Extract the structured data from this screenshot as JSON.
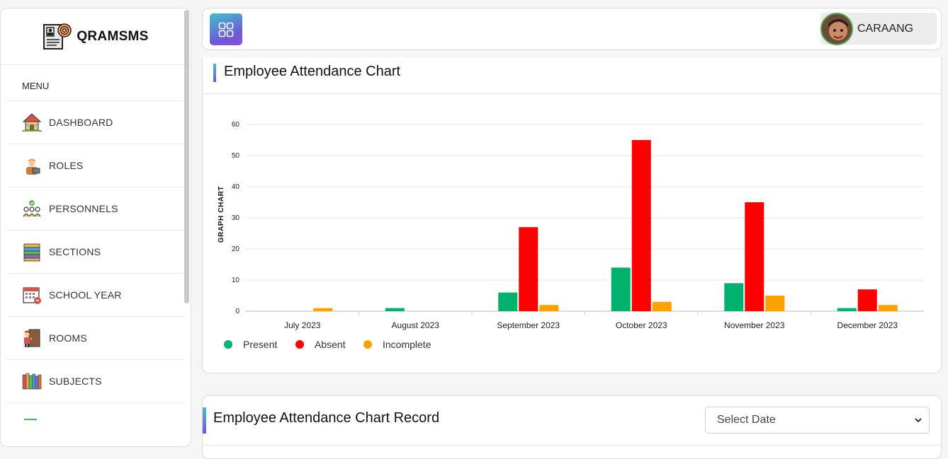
{
  "brand": {
    "name": "QRAMSMS"
  },
  "sidebar": {
    "menu_label": "MENU",
    "items": [
      {
        "label": "DASHBOARD",
        "icon": "house-icon"
      },
      {
        "label": "ROLES",
        "icon": "worker-icon"
      },
      {
        "label": "PERSONNELS",
        "icon": "group-icon"
      },
      {
        "label": "SECTIONS",
        "icon": "books-stack-icon"
      },
      {
        "label": "SCHOOL YEAR",
        "icon": "calendar-icon"
      },
      {
        "label": "ROOMS",
        "icon": "door-icon"
      },
      {
        "label": "SUBJECTS",
        "icon": "bookshelf-icon"
      }
    ]
  },
  "topbar": {
    "user_name": "CARAANG"
  },
  "chart_card": {
    "title": "Employee Attendance Chart"
  },
  "record_card": {
    "title": "Employee Attendance Chart Record",
    "select_placeholder": "Select Date"
  },
  "colors": {
    "present": "#00b26b",
    "absent": "#ff0000",
    "incomplete": "#ffa200",
    "accent_start": "#3fc1c9",
    "accent_end": "#7b53d6"
  },
  "chart_data": {
    "type": "bar",
    "title": "",
    "xlabel": "",
    "ylabel": "GRAPH CHART",
    "ylim": [
      0,
      60
    ],
    "yticks": [
      0,
      10,
      20,
      30,
      40,
      50,
      60
    ],
    "grid": true,
    "legend_position": "bottom-left",
    "categories": [
      "July 2023",
      "August 2023",
      "September 2023",
      "October 2023",
      "November 2023",
      "December 2023"
    ],
    "series": [
      {
        "name": "Present",
        "color": "#00b26b",
        "values": [
          0,
          1,
          6,
          14,
          9,
          1
        ]
      },
      {
        "name": "Absent",
        "color": "#ff0000",
        "values": [
          0,
          0,
          27,
          55,
          35,
          7
        ]
      },
      {
        "name": "Incomplete",
        "color": "#ffa200",
        "values": [
          1,
          0,
          2,
          3,
          5,
          2
        ]
      }
    ]
  }
}
